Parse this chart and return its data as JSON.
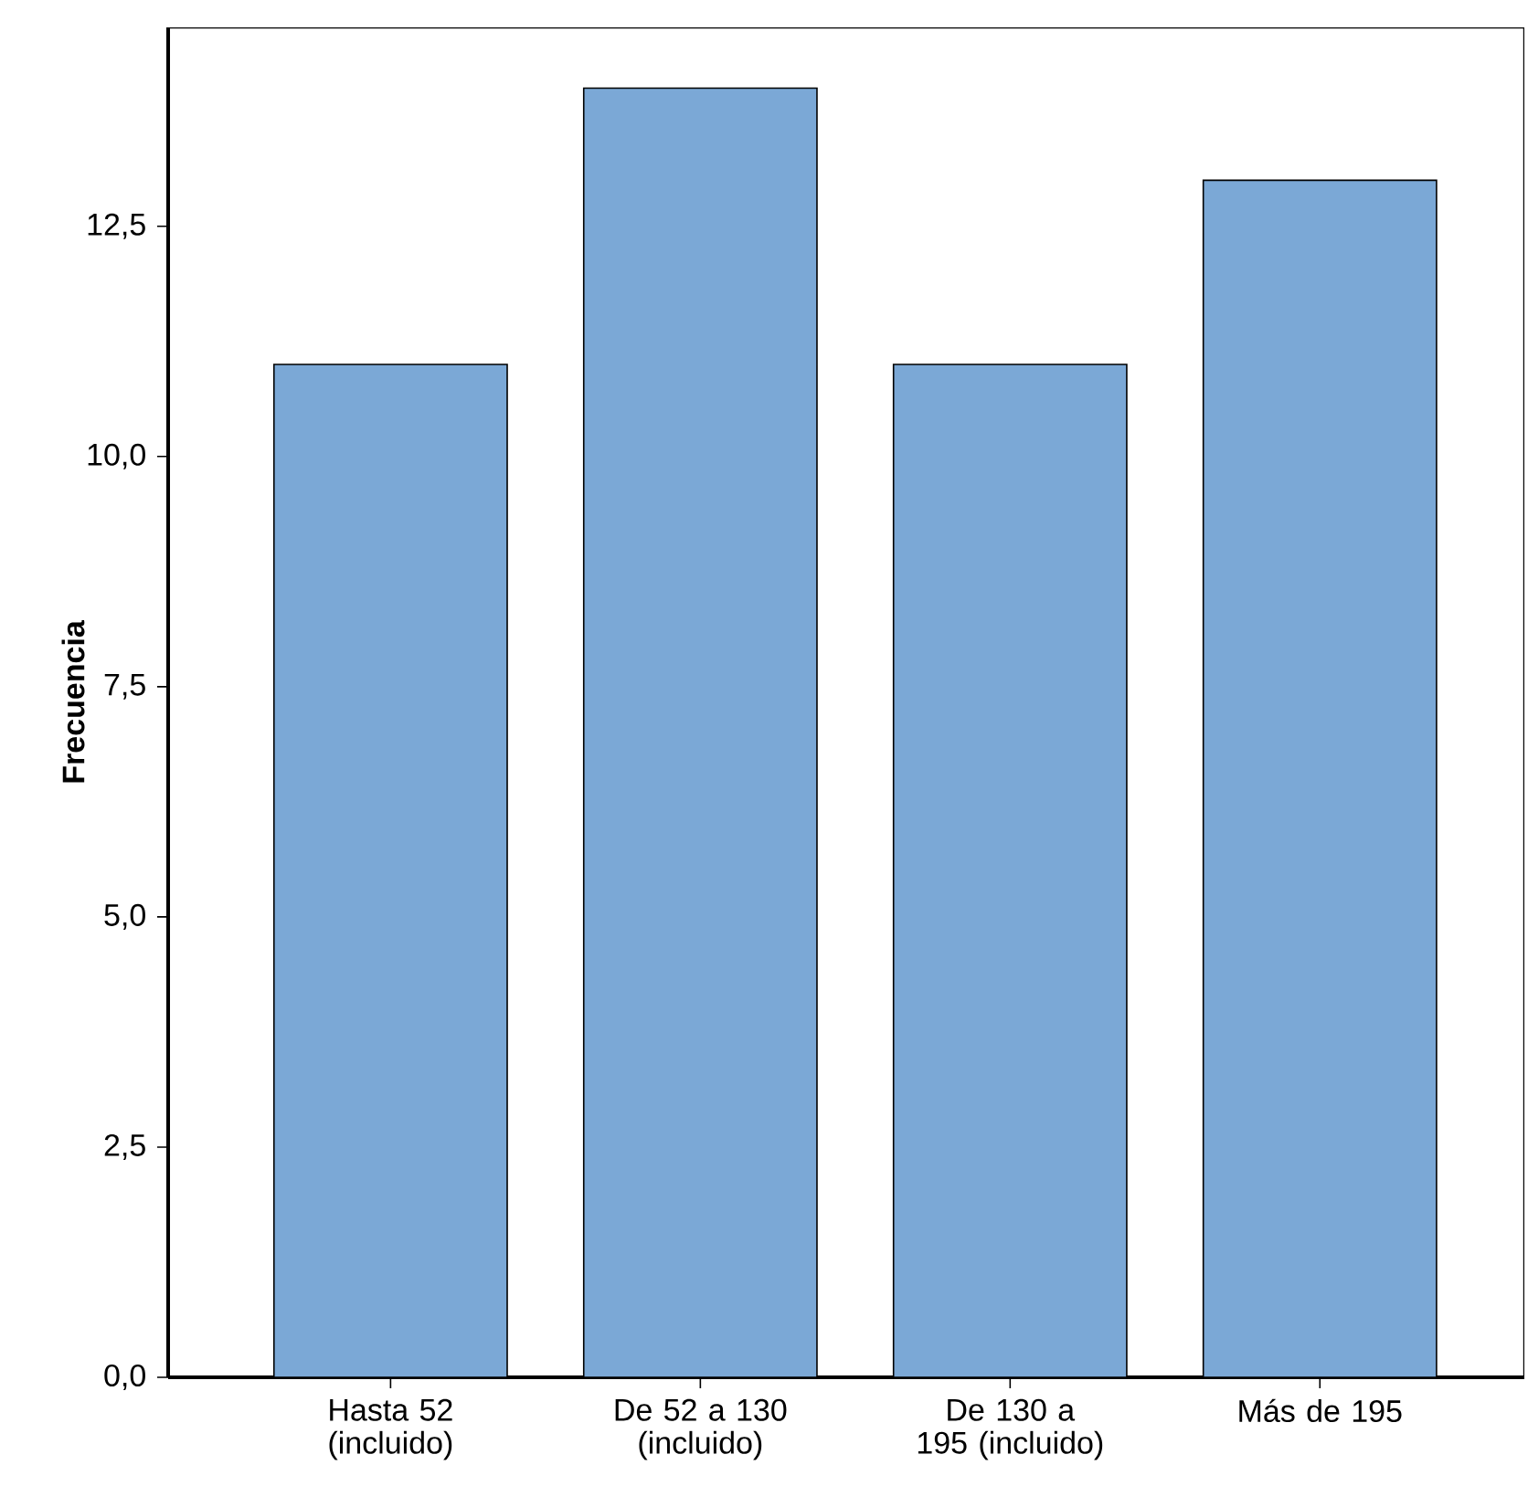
{
  "chart_data": {
    "type": "bar",
    "ylabel": "Frecuencia",
    "categories": [
      "Hasta 52 (incluido)",
      "De 52 a 130 (incluido)",
      "De 130 a 195 (incluido)",
      "Más de 195"
    ],
    "values": [
      11,
      14,
      11,
      13
    ],
    "color": "#7ba8d6",
    "ylim": [
      0,
      14.66
    ],
    "yticks": [
      {
        "value": 0,
        "label": "0,0"
      },
      {
        "value": 2.5,
        "label": "2,5"
      },
      {
        "value": 5,
        "label": "5,0"
      },
      {
        "value": 7.5,
        "label": "7,5"
      },
      {
        "value": 10,
        "label": "10,0"
      },
      {
        "value": 12.5,
        "label": "12,5"
      }
    ],
    "grid": false
  }
}
